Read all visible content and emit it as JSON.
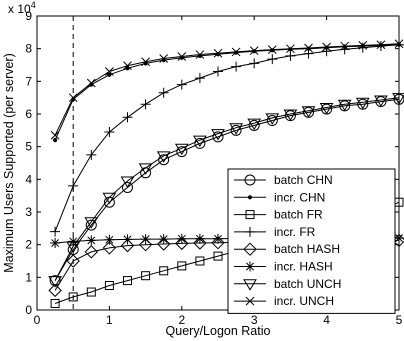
{
  "chart_data": {
    "type": "line",
    "xlabel": "Query/Logon Ratio",
    "ylabel": "Maximum Users Supported (per server)",
    "y_multiplier_label": {
      "base": "x 10",
      "exponent": "4"
    },
    "xlim": [
      0,
      5
    ],
    "ylim": [
      0,
      9
    ],
    "xticks": [
      "0",
      "1",
      "2",
      "3",
      "4",
      "5"
    ],
    "yticks": [
      "0",
      "1",
      "2",
      "3",
      "4",
      "5",
      "6",
      "7",
      "8",
      "9"
    ],
    "grid": false,
    "legend_position": "bottom-right",
    "vline_x": 0.5,
    "series": [
      {
        "name": "batch CHN",
        "marker": "circle",
        "x": [
          0.25,
          0.5,
          0.75,
          1,
          1.25,
          1.5,
          1.75,
          2,
          2.25,
          2.5,
          2.75,
          3,
          3.25,
          3.5,
          3.75,
          4,
          4.25,
          4.5,
          4.75,
          5
        ],
        "values": [
          0.9,
          1.85,
          2.6,
          3.3,
          3.75,
          4.2,
          4.6,
          4.85,
          5.1,
          5.3,
          5.5,
          5.65,
          5.8,
          5.95,
          6.05,
          6.15,
          6.25,
          6.3,
          6.38,
          6.45
        ]
      },
      {
        "name": "incr. CHN",
        "marker": "dot",
        "x": [
          0.25,
          0.5,
          0.75,
          1,
          1.25,
          1.5,
          1.75,
          2,
          2.25,
          2.5,
          2.75,
          3,
          3.25,
          3.5,
          3.75,
          4,
          4.25,
          4.5,
          4.75,
          5
        ],
        "values": [
          5.2,
          6.45,
          6.9,
          7.2,
          7.4,
          7.55,
          7.65,
          7.72,
          7.78,
          7.83,
          7.88,
          7.92,
          7.95,
          7.98,
          8.0,
          8.03,
          8.06,
          8.08,
          8.1,
          8.12
        ]
      },
      {
        "name": "batch FR",
        "marker": "square",
        "x": [
          0.25,
          0.5,
          0.75,
          1,
          1.25,
          1.5,
          1.75,
          2,
          2.25,
          2.5,
          2.75,
          3,
          3.25,
          3.5,
          3.75,
          4,
          4.25,
          4.5,
          4.75,
          5
        ],
        "values": [
          0.2,
          0.4,
          0.55,
          0.75,
          0.9,
          1.05,
          1.2,
          1.35,
          1.5,
          1.65,
          1.8,
          1.95,
          2.1,
          2.25,
          2.4,
          2.55,
          2.7,
          2.85,
          3.05,
          3.3
        ]
      },
      {
        "name": "incr. FR",
        "marker": "plus",
        "x": [
          0.25,
          0.5,
          0.75,
          1,
          1.25,
          1.5,
          1.75,
          2,
          2.25,
          2.5,
          2.75,
          3,
          3.25,
          3.5,
          3.75,
          4,
          4.25,
          4.5,
          4.75,
          5
        ],
        "values": [
          2.4,
          3.8,
          4.75,
          5.45,
          5.9,
          6.3,
          6.65,
          6.9,
          7.1,
          7.3,
          7.45,
          7.55,
          7.68,
          7.78,
          7.85,
          7.92,
          7.98,
          8.03,
          8.08,
          8.12
        ]
      },
      {
        "name": "batch HASH",
        "marker": "diamond",
        "x": [
          0.25,
          0.5,
          0.75,
          1,
          1.25,
          1.5,
          1.75,
          2,
          2.25,
          2.5,
          2.75,
          3,
          3.25,
          3.5,
          3.75,
          4,
          4.25,
          4.5,
          4.75,
          5
        ],
        "values": [
          0.6,
          1.5,
          1.78,
          1.9,
          1.97,
          2.0,
          2.02,
          2.04,
          2.05,
          2.06,
          2.07,
          2.08,
          2.09,
          2.1,
          2.1,
          2.11,
          2.12,
          2.12,
          2.13,
          2.13
        ]
      },
      {
        "name": "incr. HASH",
        "marker": "star",
        "x": [
          0.25,
          0.5,
          0.75,
          1,
          1.25,
          1.5,
          1.75,
          2,
          2.25,
          2.5,
          2.75,
          3,
          3.25,
          3.5,
          3.75,
          4,
          4.25,
          4.5,
          4.75,
          5
        ],
        "values": [
          2.05,
          2.1,
          2.13,
          2.15,
          2.16,
          2.17,
          2.17,
          2.18,
          2.18,
          2.18,
          2.19,
          2.19,
          2.19,
          2.19,
          2.2,
          2.2,
          2.2,
          2.2,
          2.2,
          2.2
        ]
      },
      {
        "name": "batch UNCH",
        "marker": "triangle-down",
        "x": [
          0.25,
          0.5,
          0.75,
          1,
          1.25,
          1.5,
          1.75,
          2,
          2.25,
          2.5,
          2.75,
          3,
          3.25,
          3.5,
          3.75,
          4,
          4.25,
          4.5,
          4.75,
          5
        ],
        "values": [
          0.9,
          1.95,
          2.7,
          3.45,
          3.95,
          4.35,
          4.72,
          4.95,
          5.2,
          5.4,
          5.58,
          5.72,
          5.88,
          6.0,
          6.1,
          6.2,
          6.3,
          6.36,
          6.43,
          6.5
        ]
      },
      {
        "name": "incr. UNCH",
        "marker": "cross",
        "x": [
          0.25,
          0.5,
          0.75,
          1,
          1.25,
          1.5,
          1.75,
          2,
          2.25,
          2.5,
          2.75,
          3,
          3.25,
          3.5,
          3.75,
          4,
          4.25,
          4.5,
          4.75,
          5
        ],
        "values": [
          5.35,
          6.5,
          6.95,
          7.3,
          7.48,
          7.6,
          7.7,
          7.76,
          7.82,
          7.86,
          7.9,
          7.94,
          7.97,
          8.0,
          8.02,
          8.05,
          8.08,
          8.1,
          8.12,
          8.15
        ]
      }
    ]
  }
}
